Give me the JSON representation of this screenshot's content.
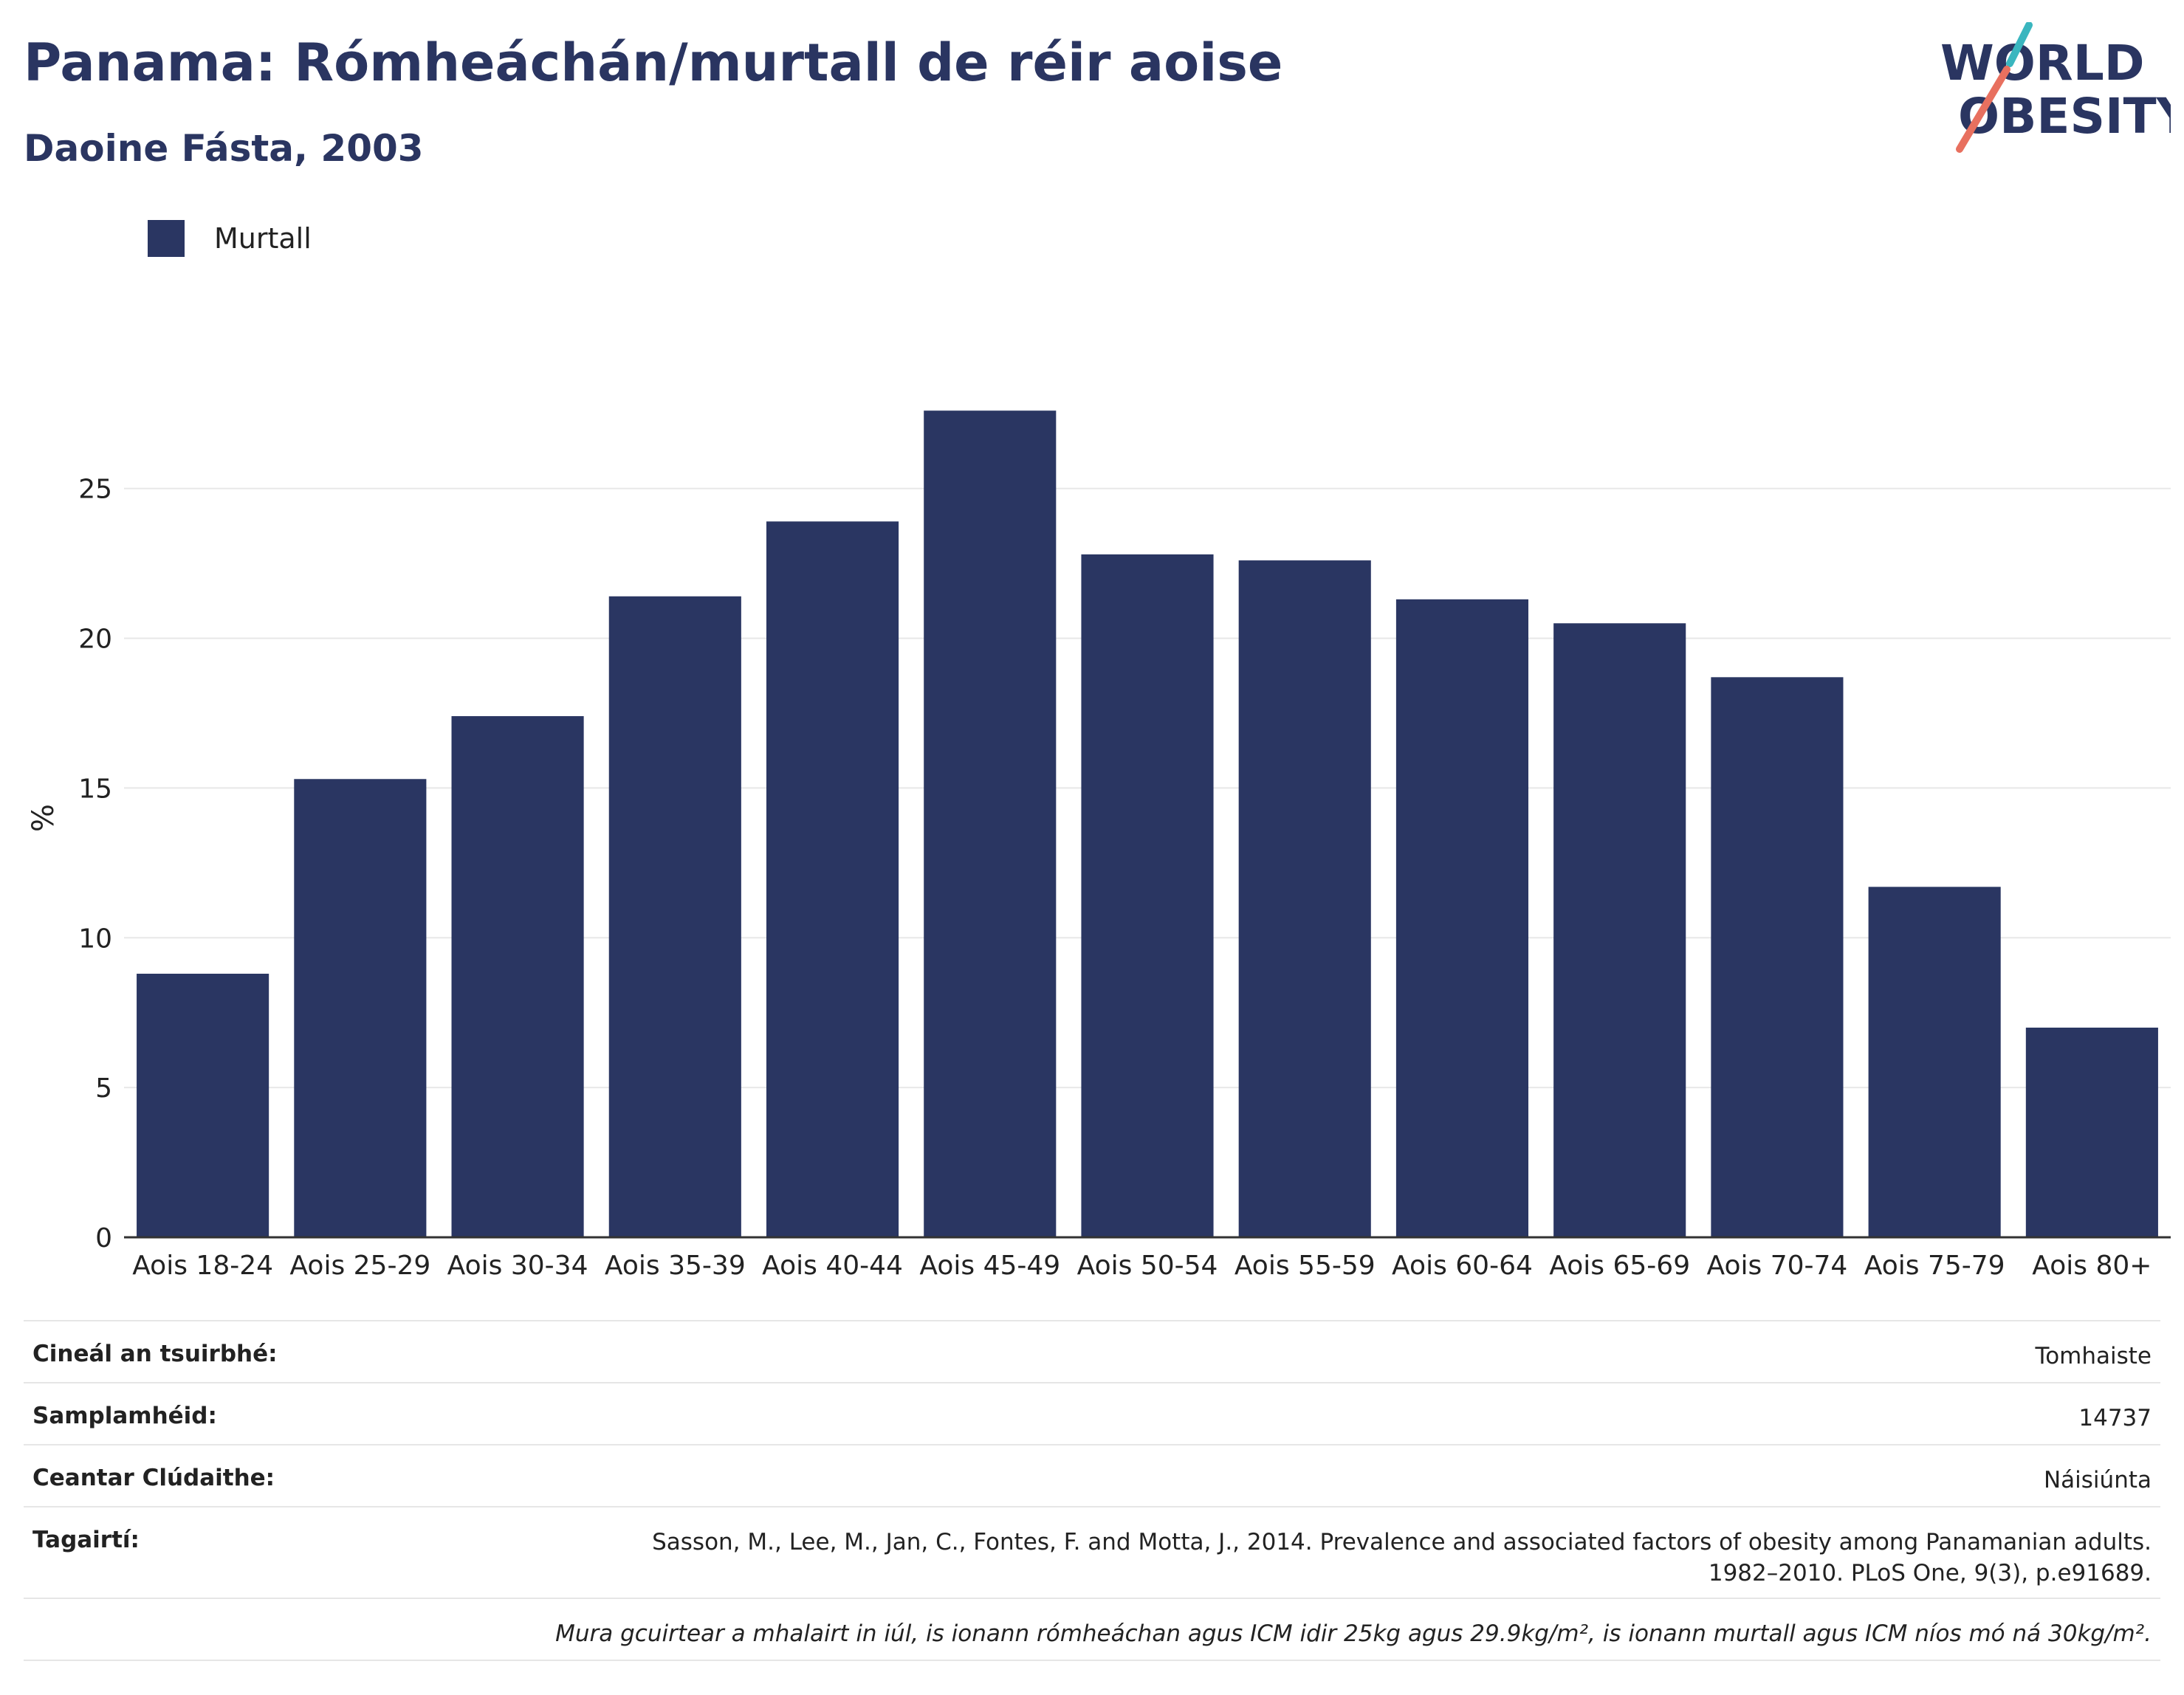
{
  "header": {
    "title": "Panama: Rómheáchán/murtall de réir aoise",
    "subtitle": "Daoine Fásta, 2003"
  },
  "logo": {
    "line1": "WORLD",
    "line2": "OBESITY"
  },
  "colors": {
    "bar": "#2a3662",
    "title": "#2a3561",
    "logo_teal": "#3ab6bf",
    "logo_coral": "#e8705f",
    "grid": "#e8e8e8"
  },
  "chart_data": {
    "type": "bar",
    "categories": [
      "Aois 18-24",
      "Aois 25-29",
      "Aois 30-34",
      "Aois 35-39",
      "Aois 40-44",
      "Aois 45-49",
      "Aois 50-54",
      "Aois 55-59",
      "Aois 60-64",
      "Aois 65-69",
      "Aois 70-74",
      "Aois 75-79",
      "Aois 80+"
    ],
    "series": [
      {
        "name": "Murtall",
        "values": [
          8.8,
          15.3,
          17.4,
          21.4,
          23.9,
          27.6,
          22.8,
          22.6,
          21.3,
          20.5,
          18.7,
          11.7,
          7.0
        ]
      }
    ],
    "ylabel": "%",
    "ylim": [
      0,
      28
    ],
    "yticks": [
      0,
      5,
      10,
      15,
      20,
      25
    ],
    "grid": true,
    "legend": "top-left"
  },
  "info": [
    {
      "label": "Cineál an tsuirbhé:",
      "value": "Tomhaiste"
    },
    {
      "label": "Samplamhéid:",
      "value": "14737"
    },
    {
      "label": "Ceantar Clúdaithe:",
      "value": "Náisiúnta"
    },
    {
      "label": "Tagairtí:",
      "value_line1": "Sasson, M., Lee, M., Jan, C., Fontes, F. and Motta, J., 2014. Prevalence and associated factors of obesity among Panamanian adults.",
      "value_line2": "1982–2010. PLoS One, 9(3), p.e91689."
    }
  ],
  "note": "Mura gcuirtear a mhalairt in iúl, is ionann rómheáchan agus ICM idir 25kg agus 29.9kg/m², is ionann murtall agus ICM níos mó ná 30kg/m²."
}
